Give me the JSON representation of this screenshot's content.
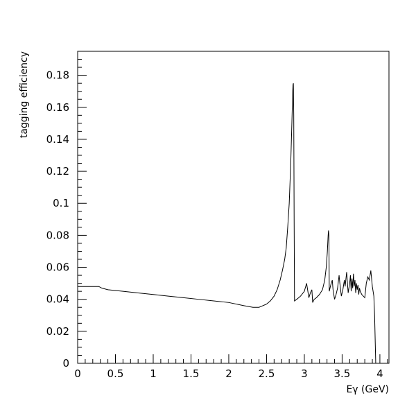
{
  "chart_data": {
    "type": "line",
    "title": "",
    "xlabel": "Eγ (GeV)",
    "ylabel": "tagging efficiency",
    "xlim": [
      0,
      4.12
    ],
    "ylim": [
      0,
      0.195
    ],
    "grid": false,
    "x_major_ticks": [
      0,
      0.5,
      1,
      1.5,
      2,
      2.5,
      3,
      3.5,
      4
    ],
    "x_tick_labels": [
      "0",
      "0.5",
      "1",
      "1.5",
      "2",
      "2.5",
      "3",
      "3.5",
      "4"
    ],
    "y_major_ticks": [
      0,
      0.02,
      0.04,
      0.06,
      0.08,
      0.1,
      0.12,
      0.14,
      0.16,
      0.18
    ],
    "y_tick_labels": [
      "0",
      "0.02",
      "0.04",
      "0.06",
      "0.08",
      "0.1",
      "0.12",
      "0.14",
      "0.16",
      "0.18"
    ],
    "x_minor_step": 0.1,
    "y_minor_step": 0.005,
    "series": [
      {
        "color": "#000000",
        "x": [
          0,
          0.28,
          0.32,
          0.4,
          0.6,
          0.8,
          1.0,
          1.2,
          1.4,
          1.6,
          1.8,
          2.0,
          2.2,
          2.32,
          2.4,
          2.45,
          2.5,
          2.55,
          2.6,
          2.64,
          2.68,
          2.71,
          2.74,
          2.76,
          2.78,
          2.8,
          2.82,
          2.835,
          2.845,
          2.85,
          2.855,
          2.86,
          2.865,
          2.87,
          2.9,
          2.95,
          3.0,
          3.03,
          3.06,
          3.08,
          3.1,
          3.11,
          3.13,
          3.16,
          3.2,
          3.24,
          3.27,
          3.29,
          3.305,
          3.315,
          3.32,
          3.325,
          3.33,
          3.35,
          3.37,
          3.38,
          3.4,
          3.42,
          3.44,
          3.46,
          3.47,
          3.49,
          3.51,
          3.53,
          3.54,
          3.56,
          3.58,
          3.6,
          3.61,
          3.62,
          3.63,
          3.64,
          3.65,
          3.66,
          3.67,
          3.68,
          3.69,
          3.7,
          3.71,
          3.72,
          3.73,
          3.74,
          3.76,
          3.78,
          3.8,
          3.82,
          3.84,
          3.86,
          3.88,
          3.9,
          3.92,
          3.93,
          3.94,
          3.945,
          3.95,
          3.955,
          3.96
        ],
        "values": [
          0.048,
          0.048,
          0.047,
          0.046,
          0.045,
          0.044,
          0.043,
          0.042,
          0.041,
          0.04,
          0.039,
          0.038,
          0.036,
          0.035,
          0.035,
          0.036,
          0.037,
          0.039,
          0.042,
          0.046,
          0.052,
          0.058,
          0.065,
          0.072,
          0.085,
          0.1,
          0.125,
          0.15,
          0.168,
          0.174,
          0.175,
          0.155,
          0.09,
          0.039,
          0.04,
          0.042,
          0.045,
          0.05,
          0.041,
          0.044,
          0.046,
          0.038,
          0.04,
          0.041,
          0.043,
          0.046,
          0.052,
          0.06,
          0.07,
          0.08,
          0.083,
          0.08,
          0.045,
          0.049,
          0.052,
          0.046,
          0.04,
          0.043,
          0.047,
          0.055,
          0.05,
          0.042,
          0.046,
          0.052,
          0.048,
          0.057,
          0.044,
          0.05,
          0.055,
          0.045,
          0.053,
          0.047,
          0.056,
          0.048,
          0.052,
          0.044,
          0.05,
          0.046,
          0.049,
          0.043,
          0.047,
          0.045,
          0.043,
          0.042,
          0.041,
          0.05,
          0.054,
          0.052,
          0.058,
          0.048,
          0.042,
          0.03,
          0.01,
          0.0,
          0.0,
          0.0,
          0.0
        ]
      }
    ]
  }
}
